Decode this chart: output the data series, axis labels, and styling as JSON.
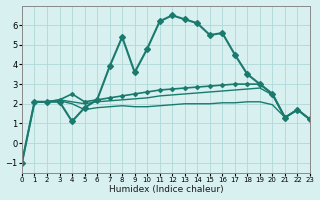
{
  "xlabel": "Humidex (Indice chaleur)",
  "ylabel": "",
  "bg_color": "#d8f0f0",
  "line_color": "#1a7a6e",
  "grid_color": "#b0d8d8",
  "xlim": [
    0,
    23
  ],
  "ylim": [
    -1.5,
    7
  ],
  "yticks": [
    -1,
    0,
    1,
    2,
    3,
    4,
    5,
    6
  ],
  "xticks": [
    0,
    1,
    2,
    3,
    4,
    5,
    6,
    7,
    8,
    9,
    10,
    11,
    12,
    13,
    14,
    15,
    16,
    17,
    18,
    19,
    20,
    21,
    22,
    23
  ],
  "series": [
    {
      "x": [
        0,
        1,
        2,
        3,
        4,
        5,
        6,
        7,
        8,
        9,
        10,
        11,
        12,
        13,
        14,
        15,
        16,
        17,
        18,
        19,
        20,
        21,
        22,
        23
      ],
      "y": [
        -1,
        2.1,
        2.1,
        2.1,
        1.1,
        1.8,
        2.2,
        3.9,
        5.4,
        3.6,
        4.8,
        6.2,
        6.5,
        6.3,
        6.1,
        5.5,
        5.6,
        4.5,
        3.5,
        3.0,
        2.5,
        1.3,
        1.7,
        1.2
      ],
      "marker": "D",
      "markersize": 3,
      "linewidth": 1.5
    },
    {
      "x": [
        0,
        1,
        2,
        3,
        4,
        5,
        6,
        7,
        8,
        9,
        10,
        11,
        12,
        13,
        14,
        15,
        16,
        17,
        18,
        19,
        20,
        21,
        22,
        23
      ],
      "y": [
        -1,
        2.1,
        2.1,
        2.2,
        2.5,
        2.1,
        2.2,
        2.3,
        2.4,
        2.5,
        2.6,
        2.7,
        2.75,
        2.8,
        2.85,
        2.9,
        2.95,
        3.0,
        3.0,
        3.0,
        2.5,
        1.3,
        1.7,
        1.2
      ],
      "marker": "D",
      "markersize": 2,
      "linewidth": 1.2
    },
    {
      "x": [
        1,
        2,
        3,
        4,
        5,
        6,
        7,
        8,
        9,
        10,
        11,
        12,
        13,
        14,
        15,
        16,
        17,
        18,
        19,
        20,
        21,
        22,
        23
      ],
      "y": [
        2.1,
        2.1,
        2.2,
        2.1,
        2.0,
        2.1,
        2.15,
        2.2,
        2.25,
        2.3,
        2.4,
        2.45,
        2.5,
        2.55,
        2.6,
        2.65,
        2.7,
        2.75,
        2.8,
        2.45,
        1.3,
        1.7,
        1.2
      ],
      "marker": null,
      "markersize": 0,
      "linewidth": 1.0
    },
    {
      "x": [
        1,
        2,
        3,
        4,
        5,
        6,
        7,
        8,
        9,
        10,
        11,
        12,
        13,
        14,
        15,
        16,
        17,
        18,
        19,
        20,
        21,
        22,
        23
      ],
      "y": [
        2.1,
        2.1,
        2.15,
        2.0,
        1.7,
        1.8,
        1.85,
        1.9,
        1.85,
        1.85,
        1.9,
        1.95,
        2.0,
        2.0,
        2.0,
        2.05,
        2.05,
        2.1,
        2.1,
        1.95,
        1.3,
        1.7,
        1.2
      ],
      "marker": null,
      "markersize": 0,
      "linewidth": 1.0
    }
  ]
}
